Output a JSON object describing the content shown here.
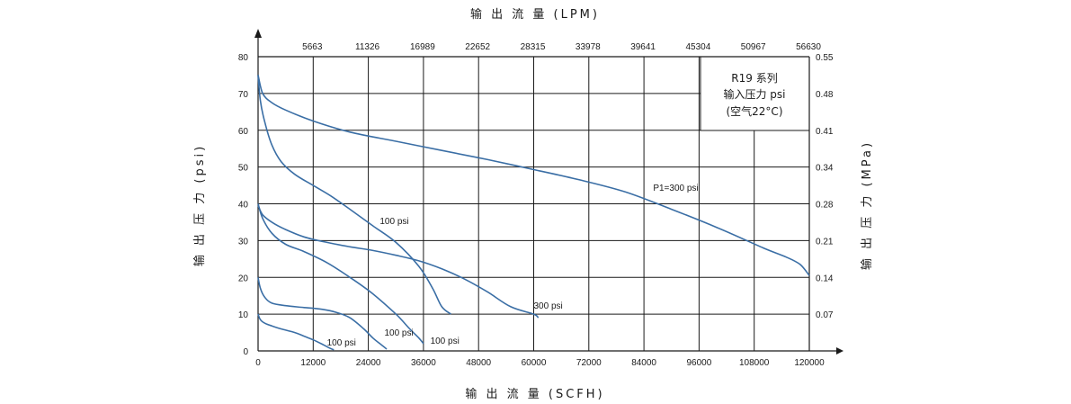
{
  "chart_data": {
    "type": "line",
    "title": "",
    "top_axis_title": "输 出 流 量 (LPM)",
    "xlabel": "输 出 流 量 (SCFH)",
    "ylabel_left": "输 出 压 力 (psi)",
    "ylabel_right": "输 出 压 力 (MPa)",
    "xlim": [
      0,
      120000
    ],
    "ylim": [
      0,
      80
    ],
    "x_ticks": [
      "0",
      "12000",
      "24000",
      "36000",
      "48000",
      "60000",
      "72000",
      "84000",
      "96000",
      "108000",
      "120000"
    ],
    "y_ticks": [
      "0",
      "10",
      "20",
      "30",
      "40",
      "50",
      "60",
      "70",
      "80"
    ],
    "top_ticks": [
      "5663",
      "11326",
      "16989",
      "22652",
      "28315",
      "33978",
      "39641",
      "45304",
      "50967",
      "56630"
    ],
    "right_ticks": [
      "0.07",
      "0.14",
      "0.21",
      "0.28",
      "0.34",
      "0.41",
      "0.48",
      "0.55"
    ],
    "legend_box": [
      "R19 系列",
      "输入压力 psi",
      "(空气22°C)"
    ],
    "grid": true,
    "series": [
      {
        "name": "P1=300 psi",
        "x": [
          0,
          1000,
          3000,
          6000,
          12000,
          20000,
          30000,
          40000,
          50000,
          60000,
          70000,
          80000,
          90000,
          100000,
          110000,
          115000,
          118000,
          120000
        ],
        "y": [
          75,
          70,
          67.5,
          65.5,
          62.5,
          59.5,
          57,
          54.5,
          52,
          49.3,
          46.5,
          43.2,
          38.5,
          33.5,
          28,
          25.5,
          23.5,
          20.5
        ]
      },
      {
        "name": "100 psi",
        "x": [
          0,
          500,
          1500,
          3000,
          5000,
          8000,
          12000,
          16000,
          20000,
          25000,
          30000,
          35000,
          38000,
          40000,
          42000
        ],
        "y": [
          75,
          68,
          62,
          56,
          51.5,
          48,
          45,
          42,
          38.5,
          34,
          29.5,
          23,
          17,
          12,
          10
        ]
      },
      {
        "name": "300 psi",
        "x": [
          0,
          1000,
          3000,
          6000,
          10000,
          15000,
          20000,
          25000,
          30000,
          35000,
          40000,
          45000,
          50000,
          55000,
          60000,
          61000
        ],
        "y": [
          39.5,
          37,
          35,
          33,
          31,
          29.5,
          28.3,
          27.3,
          26,
          24.5,
          22.3,
          19.5,
          16,
          12,
          10,
          9
        ]
      },
      {
        "name": "100 psi",
        "x": [
          0,
          1000,
          3000,
          6000,
          10000,
          15000,
          20000,
          25000,
          30000,
          33000,
          35000,
          36000
        ],
        "y": [
          40,
          36,
          32,
          29,
          27,
          24,
          20,
          15.5,
          10,
          6,
          3.5,
          2
        ]
      },
      {
        "name": "100 psi",
        "x": [
          0,
          500,
          1500,
          3000,
          6000,
          10000,
          14000,
          17000,
          20000,
          23000,
          25000,
          27000,
          28000
        ],
        "y": [
          20,
          17,
          14.5,
          13,
          12.3,
          11.8,
          11.3,
          10.5,
          9,
          6,
          3.5,
          1.5,
          0.5
        ]
      },
      {
        "name": "100 psi",
        "x": [
          0,
          500,
          1500,
          3000,
          5000,
          8000,
          10000,
          12000,
          14000,
          15500,
          16500
        ],
        "y": [
          10,
          8.5,
          7.5,
          6.8,
          6,
          5,
          4,
          3,
          1.8,
          0.8,
          0.3
        ]
      }
    ],
    "curve_labels": [
      {
        "text": "P1=300 psi",
        "x": 86000,
        "y": 43.5
      },
      {
        "text": "100 psi",
        "x": 26500,
        "y": 34.5
      },
      {
        "text": "300 psi",
        "x": 60000,
        "y": 11.5
      },
      {
        "text": "100 psi",
        "x": 37500,
        "y": 2
      },
      {
        "text": "100 psi",
        "x": 27500,
        "y": 4.2
      },
      {
        "text": "100 psi",
        "x": 15000,
        "y": 1.5
      }
    ],
    "colors": {
      "curve": "#3a6ea5",
      "grid": "#1a1a1a"
    }
  }
}
